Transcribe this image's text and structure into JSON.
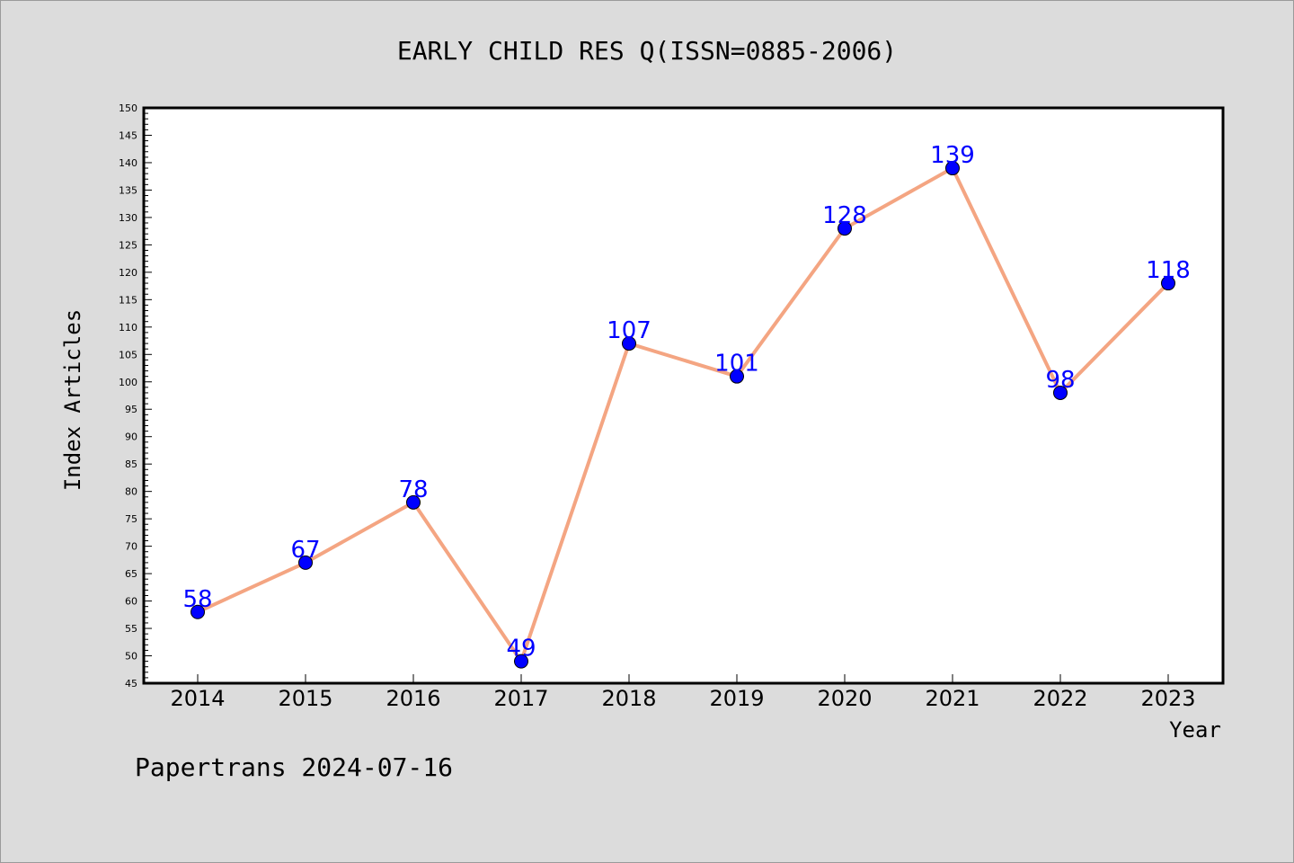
{
  "chart_data": {
    "type": "line",
    "title": "EARLY CHILD RES Q(ISSN=0885-2006)",
    "xlabel": "Year",
    "ylabel": "Index Articles",
    "categories": [
      "2014",
      "2015",
      "2016",
      "2017",
      "2018",
      "2019",
      "2020",
      "2021",
      "2022",
      "2023"
    ],
    "series": [
      {
        "values": [
          58,
          67,
          78,
          49,
          107,
          101,
          128,
          139,
          98,
          118
        ]
      }
    ],
    "ylim": [
      45,
      150
    ],
    "ytick_step": 5,
    "grid": false,
    "colors": {
      "line": "#f4a582",
      "marker": "#0000ff",
      "label": "#0000ff",
      "background": "#dcdcdc",
      "plot_background": "#ffffff"
    }
  },
  "footer": "Papertrans 2024-07-16"
}
